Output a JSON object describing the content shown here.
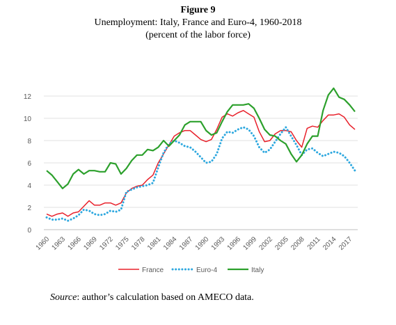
{
  "figure": {
    "number": "Figure 9",
    "title": "Unemployment: Italy, France and Euro-4, 1960-2018",
    "subtitle": "(percent of the labor force)"
  },
  "source": {
    "label": "Source",
    "text": ": author’s calculation based on AMECO data."
  },
  "chart_data": {
    "type": "line",
    "title": "Unemployment: Italy, France and Euro-4, 1960-2018",
    "subtitle": "(percent of the labor force)",
    "xlabel": "",
    "ylabel": "",
    "ylim": [
      0,
      12
    ],
    "yticks": [
      0,
      2,
      4,
      6,
      8,
      10,
      12
    ],
    "xtick_labels": [
      "1960",
      "1963",
      "1966",
      "1969",
      "1972",
      "1975",
      "1978",
      "1981",
      "1984",
      "1987",
      "1990",
      "1993",
      "1996",
      "1999",
      "2002",
      "2005",
      "2008",
      "2011",
      "2014",
      "2017"
    ],
    "grid": "horizontal",
    "legend_position": "bottom",
    "x": [
      1960,
      1961,
      1962,
      1963,
      1964,
      1965,
      1966,
      1967,
      1968,
      1969,
      1970,
      1971,
      1972,
      1973,
      1974,
      1975,
      1976,
      1977,
      1978,
      1979,
      1980,
      1981,
      1982,
      1983,
      1984,
      1985,
      1986,
      1987,
      1988,
      1989,
      1990,
      1991,
      1992,
      1993,
      1994,
      1995,
      1996,
      1997,
      1998,
      1999,
      2000,
      2001,
      2002,
      2003,
      2004,
      2005,
      2006,
      2007,
      2008,
      2009,
      2010,
      2011,
      2012,
      2013,
      2014,
      2015,
      2016,
      2017,
      2018
    ],
    "series": [
      {
        "name": "France",
        "color": "#e8202a",
        "style": "solid",
        "values": [
          1.4,
          1.2,
          1.4,
          1.5,
          1.2,
          1.5,
          1.6,
          2.1,
          2.6,
          2.2,
          2.2,
          2.4,
          2.4,
          2.2,
          2.4,
          3.3,
          3.7,
          3.9,
          4.0,
          4.5,
          4.9,
          6.0,
          6.8,
          7.6,
          8.4,
          8.7,
          8.9,
          8.9,
          8.5,
          8.1,
          7.9,
          8.1,
          9.0,
          10.1,
          10.4,
          10.2,
          10.5,
          10.7,
          10.4,
          10.1,
          8.8,
          7.9,
          8.0,
          8.6,
          8.9,
          8.9,
          8.8,
          8.0,
          7.4,
          9.1,
          9.3,
          9.2,
          9.8,
          10.3,
          10.3,
          10.4,
          10.1,
          9.4,
          9.0
        ]
      },
      {
        "name": "Euro-4",
        "color": "#2ea8df",
        "style": "dotted",
        "values": [
          1.1,
          0.9,
          0.9,
          1.0,
          0.8,
          1.0,
          1.3,
          1.8,
          1.7,
          1.4,
          1.3,
          1.4,
          1.7,
          1.6,
          1.8,
          3.4,
          3.6,
          3.8,
          3.9,
          4.0,
          4.2,
          5.6,
          6.9,
          7.7,
          8.0,
          7.8,
          7.5,
          7.4,
          7.0,
          6.5,
          6.0,
          6.1,
          6.8,
          8.2,
          8.8,
          8.7,
          9.0,
          9.2,
          9.0,
          8.4,
          7.4,
          6.9,
          7.2,
          7.9,
          8.6,
          9.2,
          8.4,
          7.6,
          6.7,
          7.2,
          7.3,
          6.9,
          6.6,
          6.8,
          7.0,
          6.9,
          6.6,
          6.0,
          5.3
        ]
      },
      {
        "name": "Italy",
        "color": "#2ca02c",
        "style": "solid",
        "values": [
          5.3,
          4.9,
          4.3,
          3.7,
          4.1,
          5.0,
          5.4,
          5.0,
          5.3,
          5.3,
          5.2,
          5.2,
          6.0,
          5.9,
          5.0,
          5.5,
          6.2,
          6.7,
          6.7,
          7.2,
          7.1,
          7.4,
          8.0,
          7.5,
          8.0,
          8.5,
          9.4,
          9.7,
          9.7,
          9.7,
          8.9,
          8.5,
          8.7,
          9.7,
          10.6,
          11.2,
          11.2,
          11.2,
          11.3,
          10.9,
          10.0,
          9.0,
          8.5,
          8.4,
          8.0,
          7.7,
          6.8,
          6.1,
          6.7,
          7.7,
          8.4,
          8.4,
          10.7,
          12.1,
          12.7,
          11.9,
          11.7,
          11.2,
          10.6
        ]
      }
    ]
  }
}
